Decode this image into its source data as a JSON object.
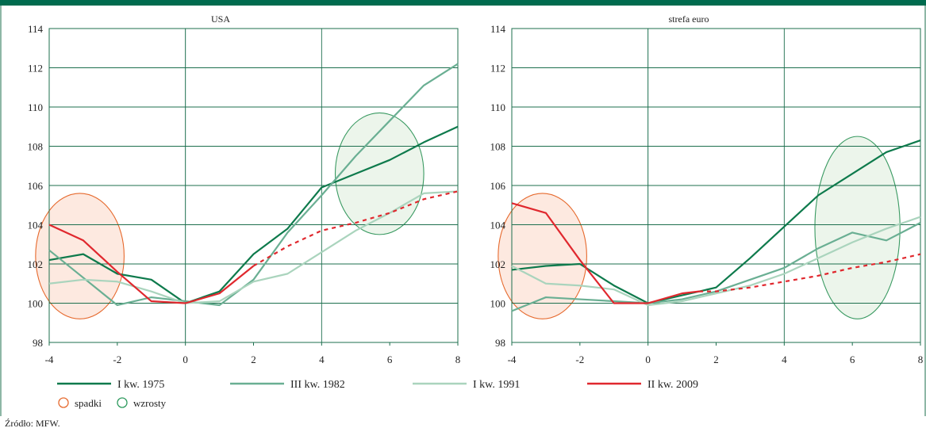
{
  "chart_data": [
    {
      "type": "line",
      "title": "USA",
      "xlim": [
        -4,
        8
      ],
      "ylim": [
        98,
        114
      ],
      "x_ticks": [
        "-4",
        "-2",
        "0",
        "2",
        "4",
        "6",
        "8"
      ],
      "y_ticks": [
        "98",
        "100",
        "102",
        "104",
        "106",
        "108",
        "110",
        "112",
        "114"
      ],
      "grid": true,
      "series": [
        {
          "name": "I kw. 1975",
          "color": "#0e7a4c",
          "x": [
            -4,
            -3,
            -2,
            -1,
            0,
            1,
            2,
            3,
            4,
            5,
            6,
            7,
            8
          ],
          "y": [
            102.2,
            102.5,
            101.5,
            101.2,
            100.0,
            100.6,
            102.5,
            103.8,
            105.9,
            106.6,
            107.3,
            108.2,
            109.0
          ]
        },
        {
          "name": "III kw. 1982",
          "color": "#6aaf93",
          "x": [
            -4,
            -3,
            -2,
            -1,
            0,
            1,
            2,
            3,
            4,
            5,
            6,
            7,
            8
          ],
          "y": [
            102.7,
            101.3,
            99.9,
            100.3,
            100.1,
            99.9,
            101.2,
            103.6,
            105.5,
            107.5,
            109.3,
            111.1,
            112.2
          ]
        },
        {
          "name": "I kw. 1991",
          "color": "#aad4bd",
          "x": [
            -4,
            -3,
            -2,
            -1,
            0,
            1,
            2,
            3,
            4,
            5,
            6,
            7,
            8
          ],
          "y": [
            101.0,
            101.2,
            101.1,
            100.6,
            100.0,
            100.1,
            101.1,
            101.5,
            102.6,
            103.7,
            104.6,
            105.6,
            105.7
          ]
        },
        {
          "name": "II kw. 2009",
          "color": "#e0282e",
          "dashed_from_x": 2,
          "x": [
            -4,
            -3,
            -2,
            -1,
            0,
            1,
            2,
            3,
            4,
            5,
            6,
            7,
            8
          ],
          "y": [
            104.0,
            103.2,
            101.6,
            100.1,
            100.0,
            100.5,
            101.9,
            102.9,
            103.7,
            104.1,
            104.6,
            105.3,
            105.7
          ]
        }
      ],
      "annotations": [
        {
          "kind": "spadki",
          "x_range": [
            -4.4,
            -1.8
          ],
          "y_range": [
            99.2,
            105.6
          ]
        },
        {
          "kind": "wzrosty",
          "x_range": [
            4.4,
            7.0
          ],
          "y_range": [
            103.5,
            109.7
          ]
        }
      ]
    },
    {
      "type": "line",
      "title": "strefa euro",
      "xlim": [
        -4,
        8
      ],
      "ylim": [
        98,
        114
      ],
      "x_ticks": [
        "-4",
        "-2",
        "0",
        "2",
        "4",
        "6",
        "8"
      ],
      "y_ticks": [
        "98",
        "100",
        "102",
        "104",
        "106",
        "108",
        "110",
        "112",
        "114"
      ],
      "grid": true,
      "series": [
        {
          "name": "I kw. 1975",
          "color": "#0e7a4c",
          "x": [
            -4,
            -3,
            -2,
            -1,
            0,
            1,
            2,
            3,
            4,
            5,
            6,
            7,
            8
          ],
          "y": [
            101.7,
            101.9,
            102.0,
            100.9,
            100.0,
            100.4,
            100.8,
            102.3,
            103.9,
            105.5,
            106.6,
            107.7,
            108.3
          ]
        },
        {
          "name": "III kw. 1982",
          "color": "#6aaf93",
          "x": [
            -4,
            -3,
            -2,
            -1,
            0,
            1,
            2,
            3,
            4,
            5,
            6,
            7,
            8
          ],
          "y": [
            99.6,
            100.3,
            100.2,
            100.1,
            100.0,
            100.2,
            100.6,
            101.2,
            101.8,
            102.8,
            103.6,
            103.2,
            104.1
          ]
        },
        {
          "name": "I kw. 1991",
          "color": "#aad4bd",
          "x": [
            -4,
            -3,
            -2,
            -1,
            0,
            1,
            2,
            3,
            4,
            5,
            6,
            7,
            8
          ],
          "y": [
            101.9,
            101.0,
            100.9,
            100.7,
            99.9,
            100.1,
            100.5,
            100.9,
            101.5,
            102.3,
            103.1,
            103.8,
            104.4
          ]
        },
        {
          "name": "II kw. 2009",
          "color": "#e0282e",
          "dashed_from_x": 1.5,
          "x": [
            -4,
            -3,
            -2,
            -1,
            0,
            1,
            1.5,
            2,
            3,
            4,
            5,
            6,
            7,
            8
          ],
          "y": [
            105.1,
            104.6,
            102.2,
            100.0,
            100.0,
            100.5,
            100.6,
            100.6,
            100.8,
            101.1,
            101.4,
            101.8,
            102.1,
            102.5
          ]
        }
      ],
      "annotations": [
        {
          "kind": "spadki",
          "x_range": [
            -4.4,
            -1.8
          ],
          "y_range": [
            99.2,
            105.6
          ]
        },
        {
          "kind": "wzrosty",
          "x_range": [
            4.9,
            7.4
          ],
          "y_range": [
            99.2,
            108.5
          ]
        }
      ]
    }
  ],
  "legend": {
    "lines": [
      {
        "label": "I kw. 1975",
        "color": "#0e7a4c"
      },
      {
        "label": "III kw. 1982",
        "color": "#6aaf93"
      },
      {
        "label": "I kw. 1991",
        "color": "#aad4bd"
      },
      {
        "label": "II kw. 2009",
        "color": "#e0282e"
      }
    ],
    "markers": [
      {
        "label": "spadki",
        "color": "#e66a2e"
      },
      {
        "label": "wzrosty",
        "color": "#2e9a5e"
      }
    ]
  },
  "colors": {
    "top_bar": "#006b4e",
    "axis": "#1d6f4e",
    "grid": "#1d6f4e"
  },
  "source": "Źródło: MFW."
}
